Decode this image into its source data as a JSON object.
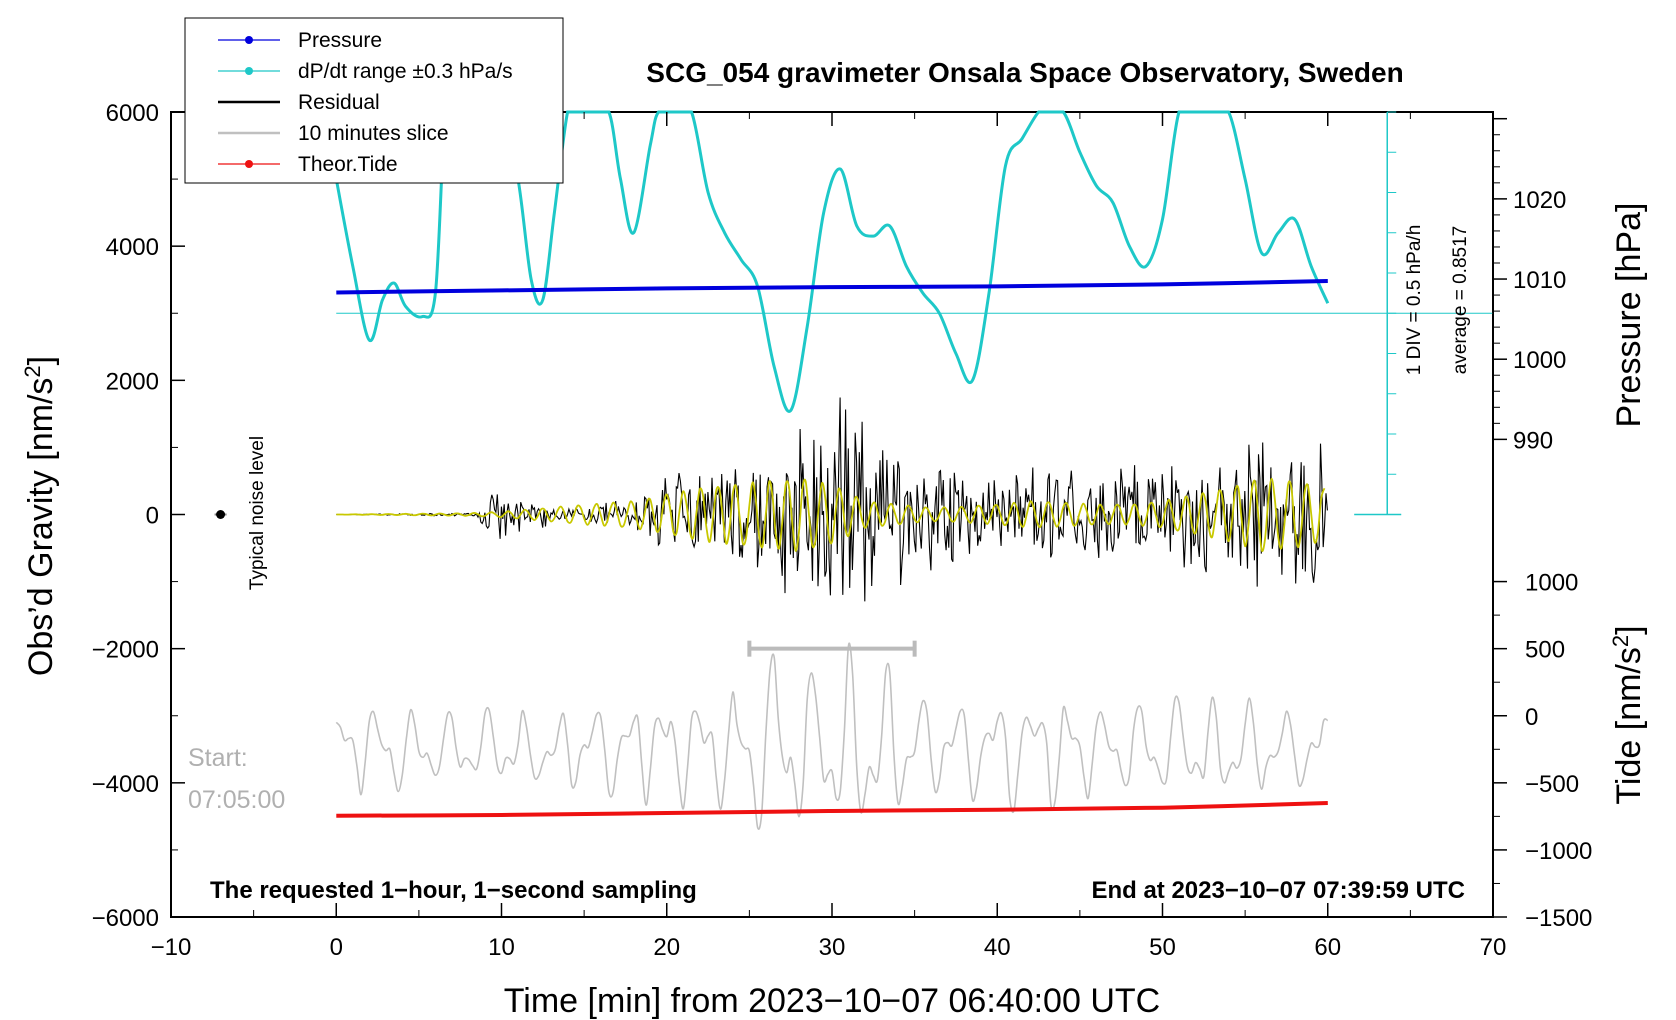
{
  "colors": {
    "pressure": "#0000dd",
    "dpdt": "#1ec8c8",
    "residual": "#000000",
    "slice": "#c0c0c0",
    "tide": "#ee1111",
    "filtered": "#c8c800"
  },
  "chart_data": {
    "type": "line",
    "title": "SCG_054 gravimeter Onsala Space Observatory, Sweden",
    "xlabel": "Time [min] from 2023−10−07 06:40:00 UTC",
    "ylabel_main": "Obs’d Gravity [nm/s",
    "ylabel_main_sup": "2",
    "ylabel_main_tail": "]",
    "ylabel_pressure": "Pressure [hPa]",
    "ylabel_tide": "Tide [nm/s",
    "ylabel_tide_sup": "2",
    "ylabel_tide_tail": "]",
    "xlim": [
      -10,
      70
    ],
    "ylim": [
      -6000,
      6000
    ],
    "x_ticks": [
      "−10",
      "0",
      "10",
      "20",
      "30",
      "40",
      "50",
      "60",
      "70"
    ],
    "x_tick_values": [
      -10,
      0,
      10,
      20,
      30,
      40,
      50,
      60,
      70
    ],
    "y_ticks": [
      "6000",
      "4000",
      "2000",
      "0",
      "−2000",
      "−4000",
      "−6000"
    ],
    "y_tick_values": [
      6000,
      4000,
      2000,
      0,
      -2000,
      -4000,
      -6000
    ],
    "pressure_axis": {
      "ticks": [
        "1020",
        "1010",
        "1000",
        "990"
      ],
      "tick_values": [
        1020,
        1010,
        1000,
        990
      ],
      "gravity_at_1030": 5900,
      "gravity_per_hpa": 119.5
    },
    "tide_axis": {
      "ticks": [
        "1000",
        "500",
        "0",
        "−500",
        "−1000",
        "−1500"
      ],
      "tick_values": [
        1000,
        500,
        0,
        -500,
        -1000,
        -1500
      ],
      "gravity_at_zero": -3000,
      "gravity_per_unit": 2
    },
    "legend": [
      {
        "label": "Pressure",
        "style": "line-dot",
        "color": "#0000dd"
      },
      {
        "label": "dP/dt range ±0.3 hPa/s",
        "style": "line-dot",
        "color": "#1ec8c8"
      },
      {
        "label": "Residual",
        "style": "line",
        "color": "#000000"
      },
      {
        "label": "10 minutes slice",
        "style": "line",
        "color": "#c0c0c0"
      },
      {
        "label": "Theor.Tide",
        "style": "line-dot",
        "color": "#ee1111"
      }
    ],
    "annotations": {
      "noise_label": "Typical noise level",
      "noise_point": {
        "x": -7,
        "y": 0
      },
      "start_line1": "Start:",
      "start_line2": "07:05:00",
      "footer_left": "The requested 1−hour, 1−second sampling",
      "footer_right": "End at 2023−10−07 07:39:59 UTC",
      "div_label": "1 DIV = 0.5 hPa/h",
      "average_label": "average = 0.8517",
      "slice_bracket": [
        25,
        35
      ],
      "slice_bracket_y": -2000,
      "dpdt_baseline": 3000,
      "dpdt_scale_x": 63.6,
      "dpdt_scale_range": [
        0,
        6000
      ],
      "dpdt_scale_div": 600
    },
    "series": [
      {
        "name": "Pressure",
        "x": [
          0,
          10,
          20,
          30,
          40,
          50,
          60
        ],
        "y": [
          3310,
          3340,
          3370,
          3390,
          3400,
          3430,
          3480
        ]
      },
      {
        "name": "dP/dt",
        "x": [
          0,
          1,
          2,
          2.8,
          3.5,
          4.2,
          5.2,
          6.0,
          6.6,
          7.2,
          8.0,
          9.0,
          10.0,
          11.0,
          11.8,
          12.5,
          13.2,
          14.0,
          14.5,
          15.5,
          16.5,
          17.2,
          18.0,
          19.0,
          19.5,
          20.5,
          21.5,
          22.5,
          23.5,
          24.5,
          25.5,
          26.5,
          27.5,
          28.5,
          29.5,
          30.5,
          31.5,
          32.5,
          33.5,
          34.5,
          35.5,
          36.5,
          37.5,
          38.5,
          39.5,
          40.5,
          41.5,
          42.5,
          43.0,
          44.0,
          45.0,
          46.0,
          47.0,
          48.0,
          49.0,
          50.0,
          51.0,
          52.0,
          53.0,
          54.0,
          55.0,
          56.0,
          57.0,
          58.0,
          59.0,
          60.0
        ],
        "y": [
          5000,
          3700,
          2600,
          3200,
          3450,
          3100,
          2950,
          3300,
          6500,
          6500,
          6500,
          6500,
          6500,
          5000,
          3500,
          3200,
          4500,
          6500,
          6500,
          6500,
          6000,
          5000,
          4200,
          5500,
          6500,
          6500,
          6500,
          4800,
          4200,
          3800,
          3400,
          2200,
          1550,
          2800,
          4500,
          5150,
          4300,
          4150,
          4300,
          3700,
          3300,
          3000,
          2400,
          2000,
          3300,
          5200,
          5600,
          6500,
          6500,
          6500,
          5400,
          4900,
          4650,
          4000,
          3700,
          4400,
          6500,
          6500,
          6500,
          6500,
          5000,
          3900,
          4200,
          4400,
          3700,
          3150
        ]
      },
      {
        "name": "Theor.Tide",
        "x": [
          0,
          10,
          20,
          30,
          40,
          50,
          60
        ],
        "y": [
          -4490,
          -4480,
          -4450,
          -4420,
          -4400,
          -4370,
          -4300
        ]
      },
      {
        "name": "Residual",
        "x": [
          0,
          8.5,
          9.0,
          10.0,
          11.0,
          12.0,
          13.0,
          14.0,
          15.0,
          16.0,
          17.0,
          18.0,
          19.0,
          20.0,
          21.0,
          22.0,
          23.0,
          24.0,
          25.0,
          26.0,
          27.0,
          28.0,
          29.0,
          30.0,
          31.0,
          32.0,
          33.0,
          34.0,
          35.0,
          36.0,
          37.0,
          38.0,
          39.0,
          40.0,
          41.0,
          42.0,
          43.0,
          44.0,
          45.0,
          46.0,
          47.0,
          48.0,
          49.0,
          50.0,
          51.0,
          52.0,
          53.0,
          54.0,
          55.0,
          56.0,
          57.0,
          58.0,
          59.0,
          60.0
        ],
        "envelope": [
          0,
          30,
          300,
          380,
          400,
          300,
          150,
          100,
          150,
          200,
          250,
          350,
          550,
          650,
          700,
          750,
          850,
          950,
          1000,
          1100,
          1300,
          1700,
          2100,
          2200,
          1800,
          1500,
          1300,
          1100,
          1000,
          950,
          900,
          850,
          800,
          780,
          760,
          740,
          720,
          730,
          750,
          780,
          800,
          820,
          850,
          900,
          950,
          1000,
          1050,
          1100,
          1150,
          1250,
          1350,
          1400,
          1400,
          1000
        ]
      },
      {
        "name": "Filtered",
        "x": [
          0,
          8,
          10,
          15,
          18,
          20,
          22,
          24,
          26,
          28,
          30,
          32,
          34,
          36,
          38,
          40,
          42,
          44,
          46,
          48,
          50,
          52,
          54,
          56,
          58,
          60
        ],
        "envelope": [
          0,
          20,
          40,
          150,
          200,
          300,
          400,
          450,
          500,
          550,
          450,
          200,
          150,
          100,
          120,
          150,
          200,
          180,
          150,
          150,
          200,
          300,
          400,
          550,
          500,
          400
        ]
      },
      {
        "name": "10 minutes slice",
        "x": [
          0,
          2,
          4,
          6,
          8,
          10,
          12,
          14,
          16,
          18,
          20,
          22,
          24,
          25,
          26,
          27,
          28,
          29,
          30,
          31,
          32,
          33,
          34,
          35,
          36,
          38,
          40,
          42,
          44,
          46,
          48,
          50,
          52,
          54,
          56,
          58,
          60
        ],
        "envelope": [
          700,
          800,
          800,
          600,
          700,
          700,
          650,
          700,
          800,
          950,
          1000,
          1000,
          1100,
          1400,
          1700,
          1600,
          1500,
          1300,
          1700,
          1800,
          1700,
          1500,
          1300,
          1100,
          900,
          900,
          1000,
          1100,
          1000,
          800,
          750,
          900,
          900,
          900,
          850,
          750,
          700
        ]
      }
    ]
  }
}
